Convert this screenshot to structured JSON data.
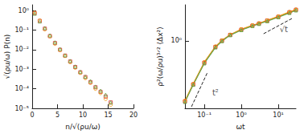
{
  "chart_data": [
    {
      "type": "scatter",
      "x_label": "n/√(ρu/ω)",
      "y_label": "√(ρu/ω) P(n)",
      "log": "y",
      "grid": false,
      "xlim": [
        0,
        20
      ],
      "xticks": [
        0,
        5,
        10,
        15,
        20
      ],
      "ylim": [
        1e-05,
        2
      ],
      "yticks": [
        {
          "value": 1e-05,
          "label": "10⁻⁵"
        },
        {
          "value": 0.0001,
          "label": "10⁻⁴"
        },
        {
          "value": 0.001,
          "label": "10⁻³"
        },
        {
          "value": 0.01,
          "label": "10⁻²"
        },
        {
          "value": 0.1,
          "label": "10⁻¹"
        },
        {
          "value": 1,
          "label": "10⁰"
        }
      ],
      "x": [
        0.5,
        1.5,
        2.5,
        3.5,
        4.5,
        5.5,
        6.5,
        7.5,
        8.5,
        9.5,
        10.5,
        11.5,
        12.5,
        13.5,
        14.5,
        15.5
      ],
      "series": [
        {
          "color": "#d62728",
          "marker": "square",
          "values": [
            0.75,
            0.3,
            0.12,
            0.05,
            0.022,
            0.01,
            0.005,
            0.0025,
            0.0013,
            0.0007,
            0.0004,
            0.00022,
            0.00012,
            7e-05,
            4e-05,
            2e-05
          ]
        },
        {
          "color": "#f39c12",
          "marker": "circle",
          "values": [
            0.8,
            0.32,
            0.11,
            0.048,
            0.02,
            0.0095,
            0.0048,
            0.0023,
            0.0012,
            0.00065,
            0.00035,
            0.0002,
            0.0001,
            6e-05,
            3e-05,
            1.5e-05
          ]
        },
        {
          "color": "#6aa84f",
          "marker": "triangle",
          "values": [
            0.7,
            0.28,
            0.13,
            0.055,
            0.024,
            0.011,
            0.0052,
            0.0027,
            0.0014,
            0.00075,
            0.00042,
            0.00025,
            0.00013,
            8e-05,
            5e-05,
            2e-05
          ]
        }
      ]
    },
    {
      "type": "line",
      "x_label": "ωt",
      "y_label": "ρ²(ω/ρu)³ᐟ² ⟨Δx²⟩",
      "log": true,
      "grid": false,
      "xlim": [
        0.03,
        30
      ],
      "xticks": [
        {
          "value": 0.1,
          "label": "10⁻¹"
        },
        {
          "value": 1,
          "label": "10⁰"
        },
        {
          "value": 10,
          "label": "10¹"
        }
      ],
      "ylim": [
        0.02,
        8
      ],
      "yticks": [
        {
          "value": 1,
          "label": "10⁰"
        }
      ],
      "x": [
        0.03,
        0.05,
        0.1,
        0.2,
        0.3,
        0.5,
        1,
        2,
        3,
        5,
        10,
        20,
        30
      ],
      "series": [
        {
          "color": "#d62728",
          "marker": "square",
          "values": [
            0.03,
            0.08,
            0.28,
            0.7,
            1.0,
            1.4,
            1.9,
            2.4,
            2.7,
            3.2,
            4.0,
            5.2,
            6.0
          ]
        },
        {
          "color": "#f39c12",
          "marker": "circle",
          "values": [
            0.031,
            0.082,
            0.29,
            0.72,
            1.02,
            1.42,
            1.95,
            2.45,
            2.75,
            3.25,
            4.1,
            5.3,
            6.1
          ]
        },
        {
          "color": "#6aa84f",
          "marker": "triangle",
          "values": [
            0.029,
            0.078,
            0.27,
            0.68,
            0.98,
            1.38,
            1.85,
            2.35,
            2.65,
            3.1,
            3.9,
            5.0,
            5.8
          ]
        },
        {
          "color": "#222222",
          "line_style": "dashed",
          "x": [
            0.045,
            0.12
          ],
          "values": [
            0.022,
            0.156
          ]
        },
        {
          "color": "#222222",
          "line_style": "dashed",
          "x": [
            4,
            25
          ],
          "values": [
            1.5,
            3.75
          ]
        }
      ],
      "annotations": [
        {
          "text": "t²",
          "x": 0.2,
          "y": 0.05
        },
        {
          "text": "√t",
          "x": 14,
          "y": 1.9
        }
      ]
    }
  ]
}
